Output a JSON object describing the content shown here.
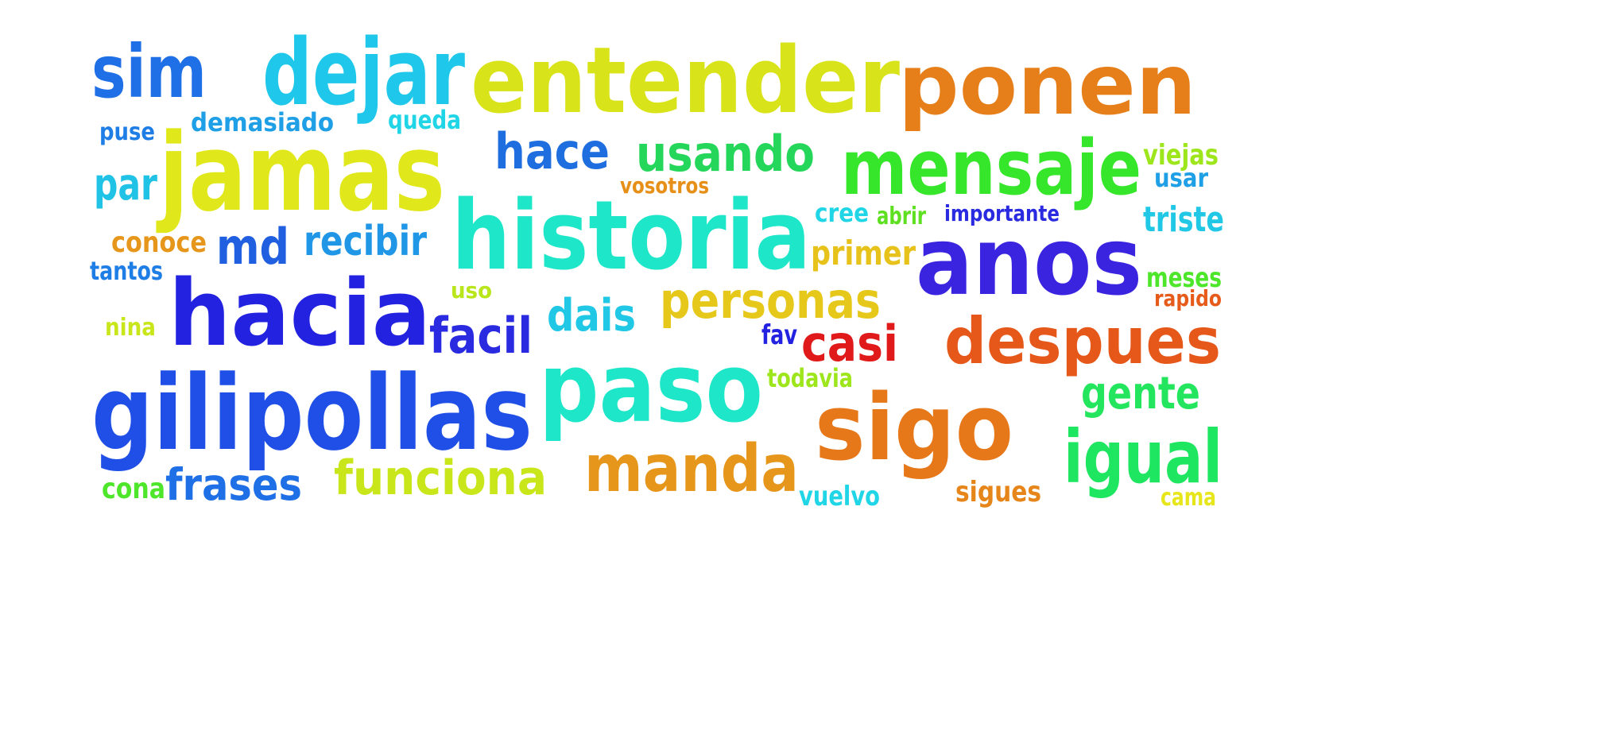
{
  "colors": {
    "sim": "#1f6fe6",
    "dejar": "#1fc8ea",
    "entender": "#d9e31a",
    "ponen": "#e67f1a",
    "puse": "#1f7de6",
    "demasiado": "#1f9fe6",
    "queda": "#20d6e6",
    "jamas": "#e0e81c",
    "hace": "#1f6ee0",
    "usando": "#24d65a",
    "mensaje": "#36e62a",
    "viejas": "#9ee61c",
    "usar": "#1f9fe6",
    "par": "#20c2e6",
    "vosotros": "#e6901a",
    "historia": "#1ee6c8",
    "cree": "#20d6e6",
    "abrir": "#5ee020",
    "importante": "#2a2ae0",
    "triste": "#20c8e6",
    "conoce": "#e6961a",
    "md": "#1f5fe0",
    "recibir": "#1f96e6",
    "primer": "#e6c21a",
    "anos": "#3b24e0",
    "tantos": "#1f7de6",
    "uso": "#b8e61a",
    "meses": "#4ee62a",
    "hacia": "#2222e0",
    "personas": "#e6c81a",
    "rapido": "#e65a1a",
    "nina": "#c8e61a",
    "facil": "#2a2ae0",
    "dais": "#20c8e6",
    "fav": "#2222e0",
    "casi": "#e01a1a",
    "despues": "#e6581a",
    "gilipollas": "#1f4fe6",
    "paso": "#1ee6c8",
    "todavia": "#9ee61c",
    "gente": "#24e65e",
    "sigo": "#e6781a",
    "igual": "#1ee660",
    "manda": "#e6961a",
    "cona": "#4ee62a",
    "frases": "#1f6fe6",
    "funciona": "#c8e61a",
    "vuelvo": "#20d6e6",
    "sigues": "#e6861a",
    "cama": "#e6e61a"
  }
}
